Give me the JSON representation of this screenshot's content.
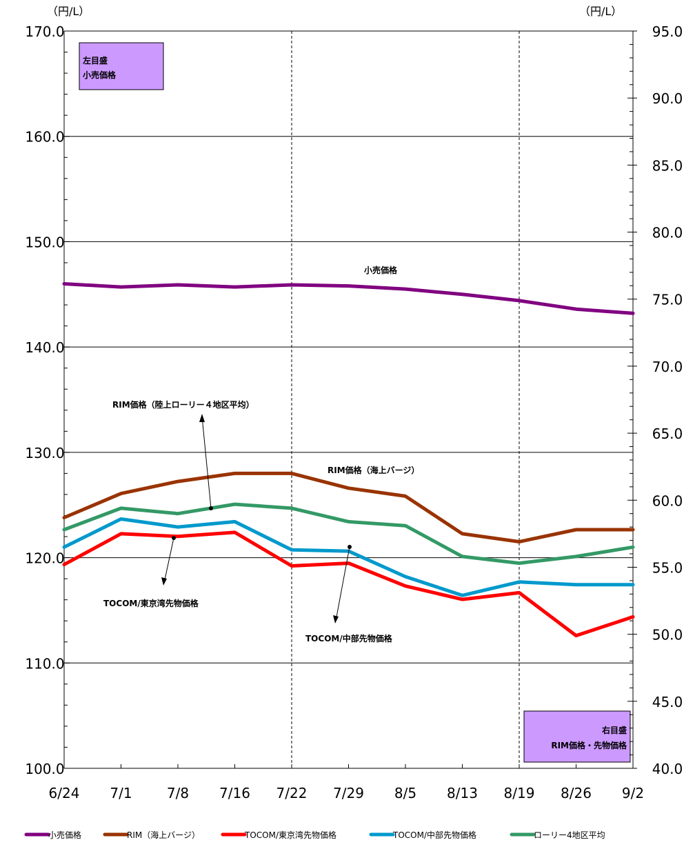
{
  "chart_data": {
    "type": "line",
    "categories": [
      "6/24",
      "7/1",
      "7/8",
      "7/16",
      "7/22",
      "7/29",
      "8/5",
      "8/13",
      "8/19",
      "8/26",
      "9/2"
    ],
    "left_axis": {
      "unit": "（円/L）",
      "ylim": [
        100,
        170
      ],
      "ticks": [
        "100.0",
        "110.0",
        "120.0",
        "130.0",
        "140.0",
        "150.0",
        "160.0",
        "170.0"
      ],
      "box_line1": "左目盛",
      "box_line2": "小売価格"
    },
    "right_axis": {
      "unit": "（円/L）",
      "ylim": [
        40,
        95
      ],
      "ticks": [
        "40.0",
        "45.0",
        "50.0",
        "55.0",
        "60.0",
        "65.0",
        "70.0",
        "75.0",
        "80.0",
        "85.0",
        "90.0",
        "95.0"
      ],
      "box_line1": "右目盛",
      "box_line2": "RIM価格・先物価格"
    },
    "series": [
      {
        "name": "小売価格",
        "axis": "left",
        "color": "#800080",
        "values": [
          146.0,
          145.7,
          145.9,
          145.7,
          145.9,
          145.8,
          145.5,
          145.0,
          144.4,
          143.6,
          143.2
        ]
      },
      {
        "name": "RIM（海上バージ）",
        "axis": "right",
        "color": "#993300",
        "values": [
          58.7,
          60.5,
          61.4,
          62.0,
          62.0,
          60.9,
          60.3,
          57.5,
          56.9,
          57.8,
          57.8
        ]
      },
      {
        "name": "TOCOM/東京湾先物価格",
        "axis": "right",
        "color": "#ff0000",
        "values": [
          55.2,
          57.5,
          57.3,
          57.6,
          55.1,
          55.3,
          53.6,
          52.6,
          53.1,
          49.9,
          51.3
        ]
      },
      {
        "name": "TOCOM/中部先物価格",
        "axis": "right",
        "color": "#0099cc",
        "values": [
          56.5,
          58.6,
          58.0,
          58.4,
          56.3,
          56.2,
          54.3,
          52.9,
          53.9,
          53.7,
          53.7
        ]
      },
      {
        "name": "ローリー4地区平均",
        "axis": "right",
        "color": "#339966",
        "values": [
          57.8,
          59.4,
          59.0,
          59.7,
          59.4,
          58.4,
          58.1,
          55.8,
          55.3,
          55.8,
          56.5
        ]
      }
    ],
    "annotations": [
      {
        "text": "小売価格"
      },
      {
        "text": "RIM価格（陸上ローリー４地区平均）"
      },
      {
        "text": "RIM価格（海上バージ）"
      },
      {
        "text": "TOCOM/東京湾先物価格"
      },
      {
        "text": "TOCOM/中部先物価格"
      }
    ],
    "grid": true,
    "vertical_dashed_lines_at": [
      "7/22",
      "8/19"
    ],
    "legend_placement": "bottom"
  }
}
